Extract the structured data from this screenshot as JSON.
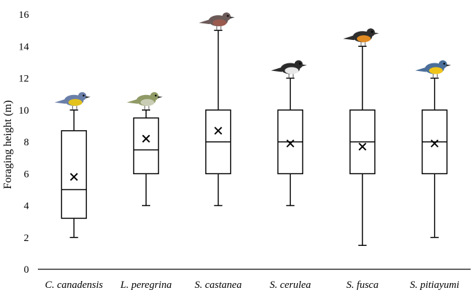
{
  "chart_data": {
    "type": "box",
    "ylabel": "Foraging height (m)",
    "xlabel": "",
    "ylim": [
      0,
      16
    ],
    "yticks": [
      0,
      2,
      4,
      6,
      8,
      10,
      12,
      14,
      16
    ],
    "grid": false,
    "legend": "none",
    "categories": [
      "C. canadensis",
      "L. peregrina",
      "S. castanea",
      "S. cerulea",
      "S. fusca",
      "S. pitiayumi"
    ],
    "boxes": [
      {
        "min": 2,
        "q1": 3.2,
        "median": 5,
        "q3": 8.7,
        "max": 10,
        "mean": 5.8
      },
      {
        "min": 4,
        "q1": 6,
        "median": 7.5,
        "q3": 9.5,
        "max": 10,
        "mean": 8.2
      },
      {
        "min": 4,
        "q1": 6,
        "median": 8,
        "q3": 10,
        "max": 15,
        "mean": 8.7
      },
      {
        "min": 4,
        "q1": 6,
        "median": 8,
        "q3": 10,
        "max": 12,
        "mean": 7.9
      },
      {
        "min": 1.5,
        "q1": 6,
        "median": 8,
        "q3": 10,
        "max": 14,
        "mean": 7.7
      },
      {
        "min": 2,
        "q1": 6,
        "median": 8,
        "q3": 10,
        "max": 12,
        "mean": 7.9
      }
    ],
    "bird_icons": [
      "canada-warbler-icon",
      "tennessee-warbler-icon",
      "bay-breasted-warbler-icon",
      "cerulean-warbler-icon",
      "blackburnian-warbler-icon",
      "tropical-parula-icon"
    ],
    "colors": {
      "stroke": "#000000",
      "background": "#ffffff"
    }
  }
}
